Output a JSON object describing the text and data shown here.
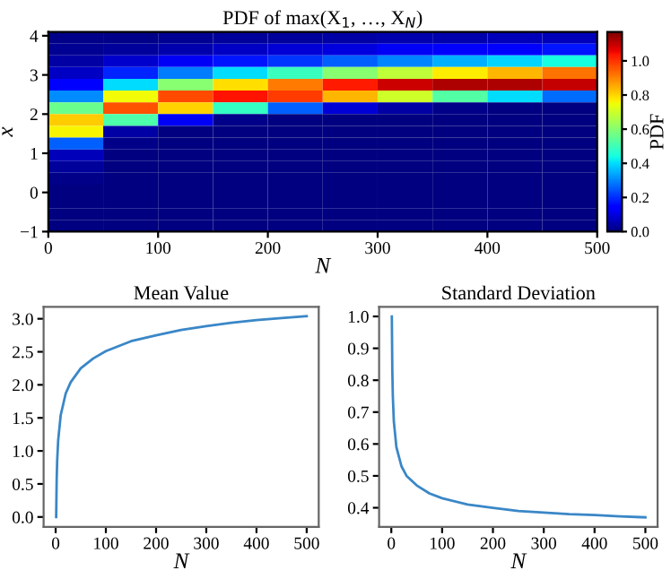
{
  "chart_data": [
    {
      "type": "heatmap",
      "title": "PDF of max(X$_{1}$, …, X$_{N}$)",
      "xlabel": "N",
      "ylabel": "x",
      "clabel": "PDF",
      "x": [
        25,
        75,
        125,
        175,
        225,
        275,
        325,
        375,
        425,
        475
      ],
      "y": [
        3.95,
        3.65,
        3.35,
        3.05,
        2.75,
        2.45,
        2.15,
        1.85,
        1.55,
        1.25,
        0.95,
        0.65,
        0.35,
        0.05,
        -0.25,
        -0.55,
        -0.85
      ],
      "cells": [
        [
          0.01,
          0.01,
          0.02,
          0.03,
          0.03,
          0.04,
          0.05,
          0.05,
          0.06,
          0.06
        ],
        [
          0.02,
          0.03,
          0.05,
          0.07,
          0.09,
          0.1,
          0.12,
          0.14,
          0.15,
          0.17
        ],
        [
          0.04,
          0.08,
          0.12,
          0.17,
          0.21,
          0.26,
          0.3,
          0.35,
          0.39,
          0.44
        ],
        [
          0.07,
          0.19,
          0.29,
          0.4,
          0.49,
          0.6,
          0.68,
          0.77,
          0.84,
          0.92
        ],
        [
          0.15,
          0.4,
          0.6,
          0.79,
          0.91,
          1.03,
          1.09,
          1.12,
          1.12,
          1.1
        ],
        [
          0.31,
          0.75,
          0.97,
          1.04,
          0.99,
          0.84,
          0.7,
          0.53,
          0.4,
          0.27
        ],
        [
          0.56,
          0.96,
          0.8,
          0.48,
          0.26,
          0.09,
          0.04,
          0.01,
          0.0,
          0.0
        ],
        [
          0.81,
          0.52,
          0.12,
          0.01,
          0.0,
          0.0,
          0.0,
          0.0,
          0.0,
          0.0
        ],
        [
          0.76,
          0.04,
          0.0,
          0.0,
          0.0,
          0.0,
          0.0,
          0.0,
          0.0,
          0.0
        ],
        [
          0.26,
          0.01,
          0.0,
          0.0,
          0.0,
          0.0,
          0.0,
          0.0,
          0.0,
          0.0
        ],
        [
          0.06,
          0.0,
          0.0,
          0.0,
          0.0,
          0.0,
          0.0,
          0.0,
          0.0,
          0.0
        ],
        [
          0.03,
          0.0,
          0.0,
          0.0,
          0.0,
          0.0,
          0.0,
          0.0,
          0.0,
          0.0
        ],
        [
          0.01,
          0.0,
          0.0,
          0.0,
          0.0,
          0.0,
          0.0,
          0.0,
          0.0,
          0.0
        ],
        [
          0.0,
          0.0,
          0.0,
          0.0,
          0.0,
          0.0,
          0.0,
          0.0,
          0.0,
          0.0
        ],
        [
          0.0,
          0.0,
          0.0,
          0.0,
          0.0,
          0.0,
          0.0,
          0.0,
          0.0,
          0.0
        ],
        [
          0.0,
          0.0,
          0.0,
          0.0,
          0.0,
          0.0,
          0.0,
          0.0,
          0.0,
          0.0
        ],
        [
          0.0,
          0.0,
          0.0,
          0.0,
          0.0,
          0.0,
          0.0,
          0.0,
          0.0,
          0.0
        ]
      ],
      "clim": [
        0,
        1.17
      ],
      "cticks": [
        {
          "value": 0,
          "label": "0.0"
        },
        {
          "value": 0.2,
          "label": "0.2"
        },
        {
          "value": 0.4,
          "label": "0.4"
        },
        {
          "value": 0.6,
          "label": "0.6"
        },
        {
          "value": 0.8,
          "label": "0.8"
        },
        {
          "value": 1.0,
          "label": "1.0"
        }
      ],
      "xlim": [
        0,
        500
      ],
      "xticks": [
        0,
        100,
        200,
        300,
        400,
        500
      ],
      "ylim": [
        -1,
        4.1
      ],
      "yticks": [
        {
          "value": -1,
          "label": "−1"
        },
        0,
        1,
        2,
        3,
        4
      ]
    },
    {
      "type": "line",
      "title": "Mean Value",
      "xlabel": "N",
      "x": [
        1,
        2,
        3,
        5,
        10,
        20,
        30,
        50,
        75,
        100,
        150,
        200,
        250,
        300,
        350,
        400,
        450,
        500
      ],
      "series": [
        {
          "color": "#3a87c7",
          "values": [
            0.0,
            0.56,
            0.85,
            1.16,
            1.54,
            1.87,
            2.04,
            2.25,
            2.4,
            2.51,
            2.66,
            2.75,
            2.83,
            2.89,
            2.94,
            2.98,
            3.01,
            3.04
          ]
        }
      ],
      "xlim": [
        -24,
        524
      ],
      "xticks": [
        0,
        100,
        200,
        300,
        400,
        500
      ],
      "ylim": [
        -0.15,
        3.18
      ],
      "yticks": [
        {
          "value": 0,
          "label": "0.0"
        },
        0.5,
        {
          "value": 1,
          "label": "1.0"
        },
        1.5,
        {
          "value": 2,
          "label": "2.0"
        },
        2.5,
        {
          "value": 3,
          "label": "3.0"
        }
      ]
    },
    {
      "type": "line",
      "title": "Standard Deviation",
      "xlabel": "N",
      "x": [
        1,
        2,
        3,
        5,
        10,
        20,
        30,
        50,
        75,
        100,
        150,
        200,
        250,
        300,
        350,
        400,
        450,
        500
      ],
      "series": [
        {
          "color": "#3a87c7",
          "values": [
            1.0,
            0.83,
            0.75,
            0.67,
            0.59,
            0.53,
            0.5,
            0.47,
            0.445,
            0.43,
            0.41,
            0.4,
            0.39,
            0.385,
            0.38,
            0.377,
            0.373,
            0.37
          ]
        }
      ],
      "xlim": [
        -24,
        524
      ],
      "xticks": [
        0,
        100,
        200,
        300,
        400,
        500
      ],
      "ylim": [
        0.34,
        1.03
      ],
      "yticks": [
        0.4,
        0.5,
        0.6,
        0.7,
        0.8,
        0.9,
        {
          "value": 1.0,
          "label": "1.0"
        }
      ]
    }
  ]
}
